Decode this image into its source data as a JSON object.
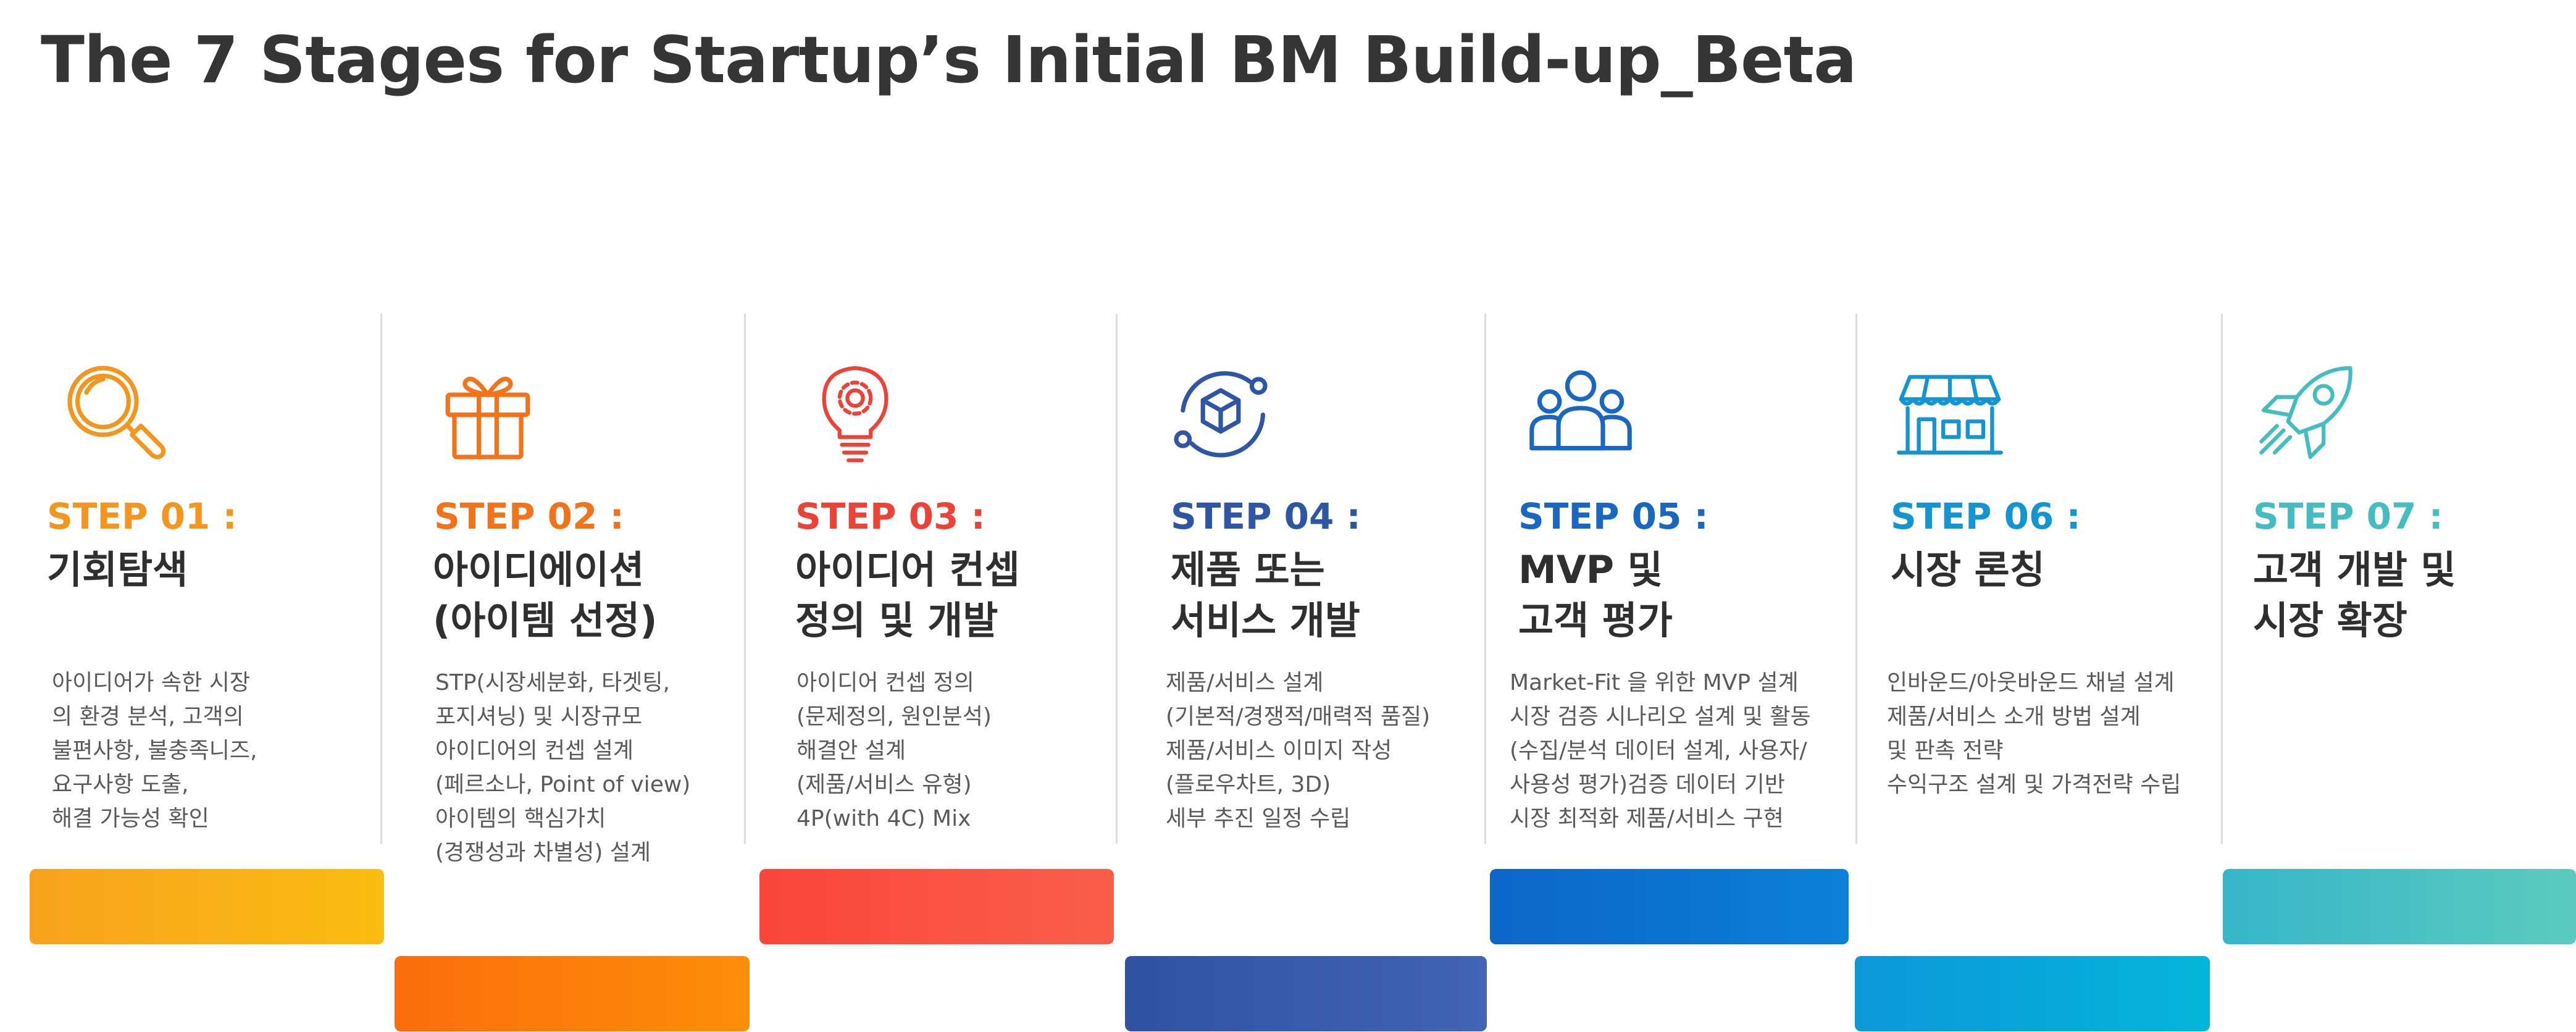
{
  "title": "The 7 Stages for Startup’s Initial BM Build-up_Beta",
  "stages": [
    {
      "step": "STEP 01 :",
      "name": [
        "기회탐색"
      ],
      "desc": [
        "아이디어가 속한 시장",
        "의 환경 분석, 고객의",
        "불편사항, 불충족니즈,",
        "요구사항 도출,",
        "해결 가능성 확인"
      ],
      "icon": "magnifier-icon",
      "color": "#f3951e",
      "bar_from": "#f7a21e",
      "bar_to": "#fbbd12"
    },
    {
      "step": "STEP 02 :",
      "name": [
        "아이디에이션",
        "(아이템 선정)"
      ],
      "desc": [
        "STP(시장세분화, 타겟팅,",
        "포지셔닝) 및 시장규모",
        "아이디어의 컨셉 설계",
        "(페르소나, Point of view)",
        "아이템의 핵심가치",
        "(경쟁성과 차별성) 설계"
      ],
      "icon": "gift-icon",
      "color": "#f27319",
      "bar_from": "#fb6d0c",
      "bar_to": "#fd8e0a"
    },
    {
      "step": "STEP 03 :",
      "name": [
        "아이디어 컨셉",
        "정의 및 개발"
      ],
      "desc": [
        "아이디어 컨셉 정의",
        "(문제정의, 원인분석)",
        "해결안 설계",
        "(제품/서비스 유형)",
        "4P(with 4C) Mix"
      ],
      "icon": "lightbulb-gear-icon",
      "color": "#ec4338",
      "bar_from": "#fa463b",
      "bar_to": "#f95e4b"
    },
    {
      "step": "STEP 04 :",
      "name": [
        "제품 또는",
        "서비스 개발"
      ],
      "desc": [
        "제품/서비스 설계",
        "(기본적/경쟁적/매력적 품질)",
        "제품/서비스 이미지 작성",
        "(플로우차트, 3D)",
        "세부 추진 일정 수립"
      ],
      "icon": "cube-cycle-icon",
      "color": "#2f56a3",
      "bar_from": "#3151a2",
      "bar_to": "#4364b2"
    },
    {
      "step": "STEP 05 :",
      "name": [
        "MVP 및",
        "고객 평가"
      ],
      "desc": [
        "Market-Fit 을 위한 MVP 설계",
        "시장 검증 시나리오 설계 및 활동",
        "(수집/분석 데이터 설계, 사용자/",
        "사용성 평가)검증 데이터 기반",
        "시장 최적화  제품/서비스 구현"
      ],
      "icon": "users-group-icon",
      "color": "#1a67c1",
      "bar_from": "#0d66c9",
      "bar_to": "#0c80d6"
    },
    {
      "step": "STEP 06 :",
      "name": [
        "시장 론칭"
      ],
      "desc": [
        "인바운드/아웃바운드 채널 설계",
        "제품/서비스 소개 방법 설계",
        "및 판촉 전략",
        "수익구조 설계 및 가격전략 수립"
      ],
      "icon": "storefront-icon",
      "color": "#1494d1",
      "bar_from": "#0c97d9",
      "bar_to": "#05b5d9"
    },
    {
      "step": "STEP 07 :",
      "name": [
        "고객 개발 및",
        "시장 확장"
      ],
      "desc": [],
      "icon": "rocket-icon",
      "color": "#45bcc0",
      "bar_from": "#37b6c9",
      "bar_to": "#5ccabe"
    }
  ]
}
